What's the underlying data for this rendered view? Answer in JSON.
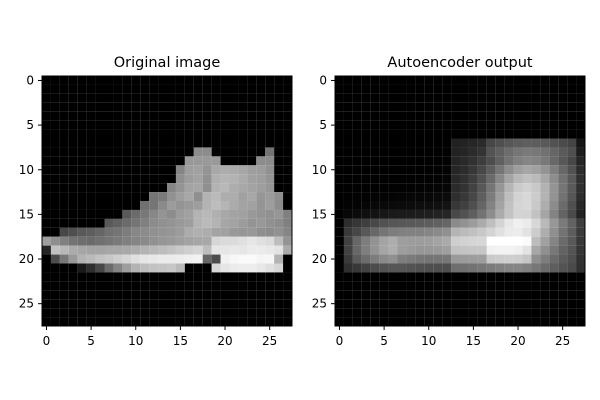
{
  "chart_data": [
    {
      "type": "heatmap",
      "title": "Original image",
      "colormap": "gray",
      "xlabel": "",
      "ylabel": "",
      "xlim": [
        -0.5,
        27.5
      ],
      "ylim": [
        27.5,
        -0.5
      ],
      "xticks": [
        0,
        5,
        10,
        15,
        20,
        25
      ],
      "yticks": [
        0,
        5,
        10,
        15,
        20,
        25
      ],
      "xtick_labels": [
        "0",
        "5",
        "10",
        "15",
        "20",
        "25"
      ],
      "ytick_labels": [
        "0",
        "5",
        "10",
        "15",
        "20",
        "25"
      ]
    },
    {
      "type": "heatmap",
      "title": "Autoencoder output",
      "colormap": "gray",
      "xlabel": "",
      "ylabel": "",
      "xlim": [
        -0.5,
        27.5
      ],
      "ylim": [
        27.5,
        -0.5
      ],
      "xticks": [
        0,
        5,
        10,
        15,
        20,
        25
      ],
      "yticks": [
        0,
        5,
        10,
        15,
        20,
        25
      ],
      "xtick_labels": [
        "0",
        "5",
        "10",
        "15",
        "20",
        "25"
      ],
      "ytick_labels": [
        "0",
        "5",
        "10",
        "15",
        "20",
        "25"
      ]
    }
  ]
}
